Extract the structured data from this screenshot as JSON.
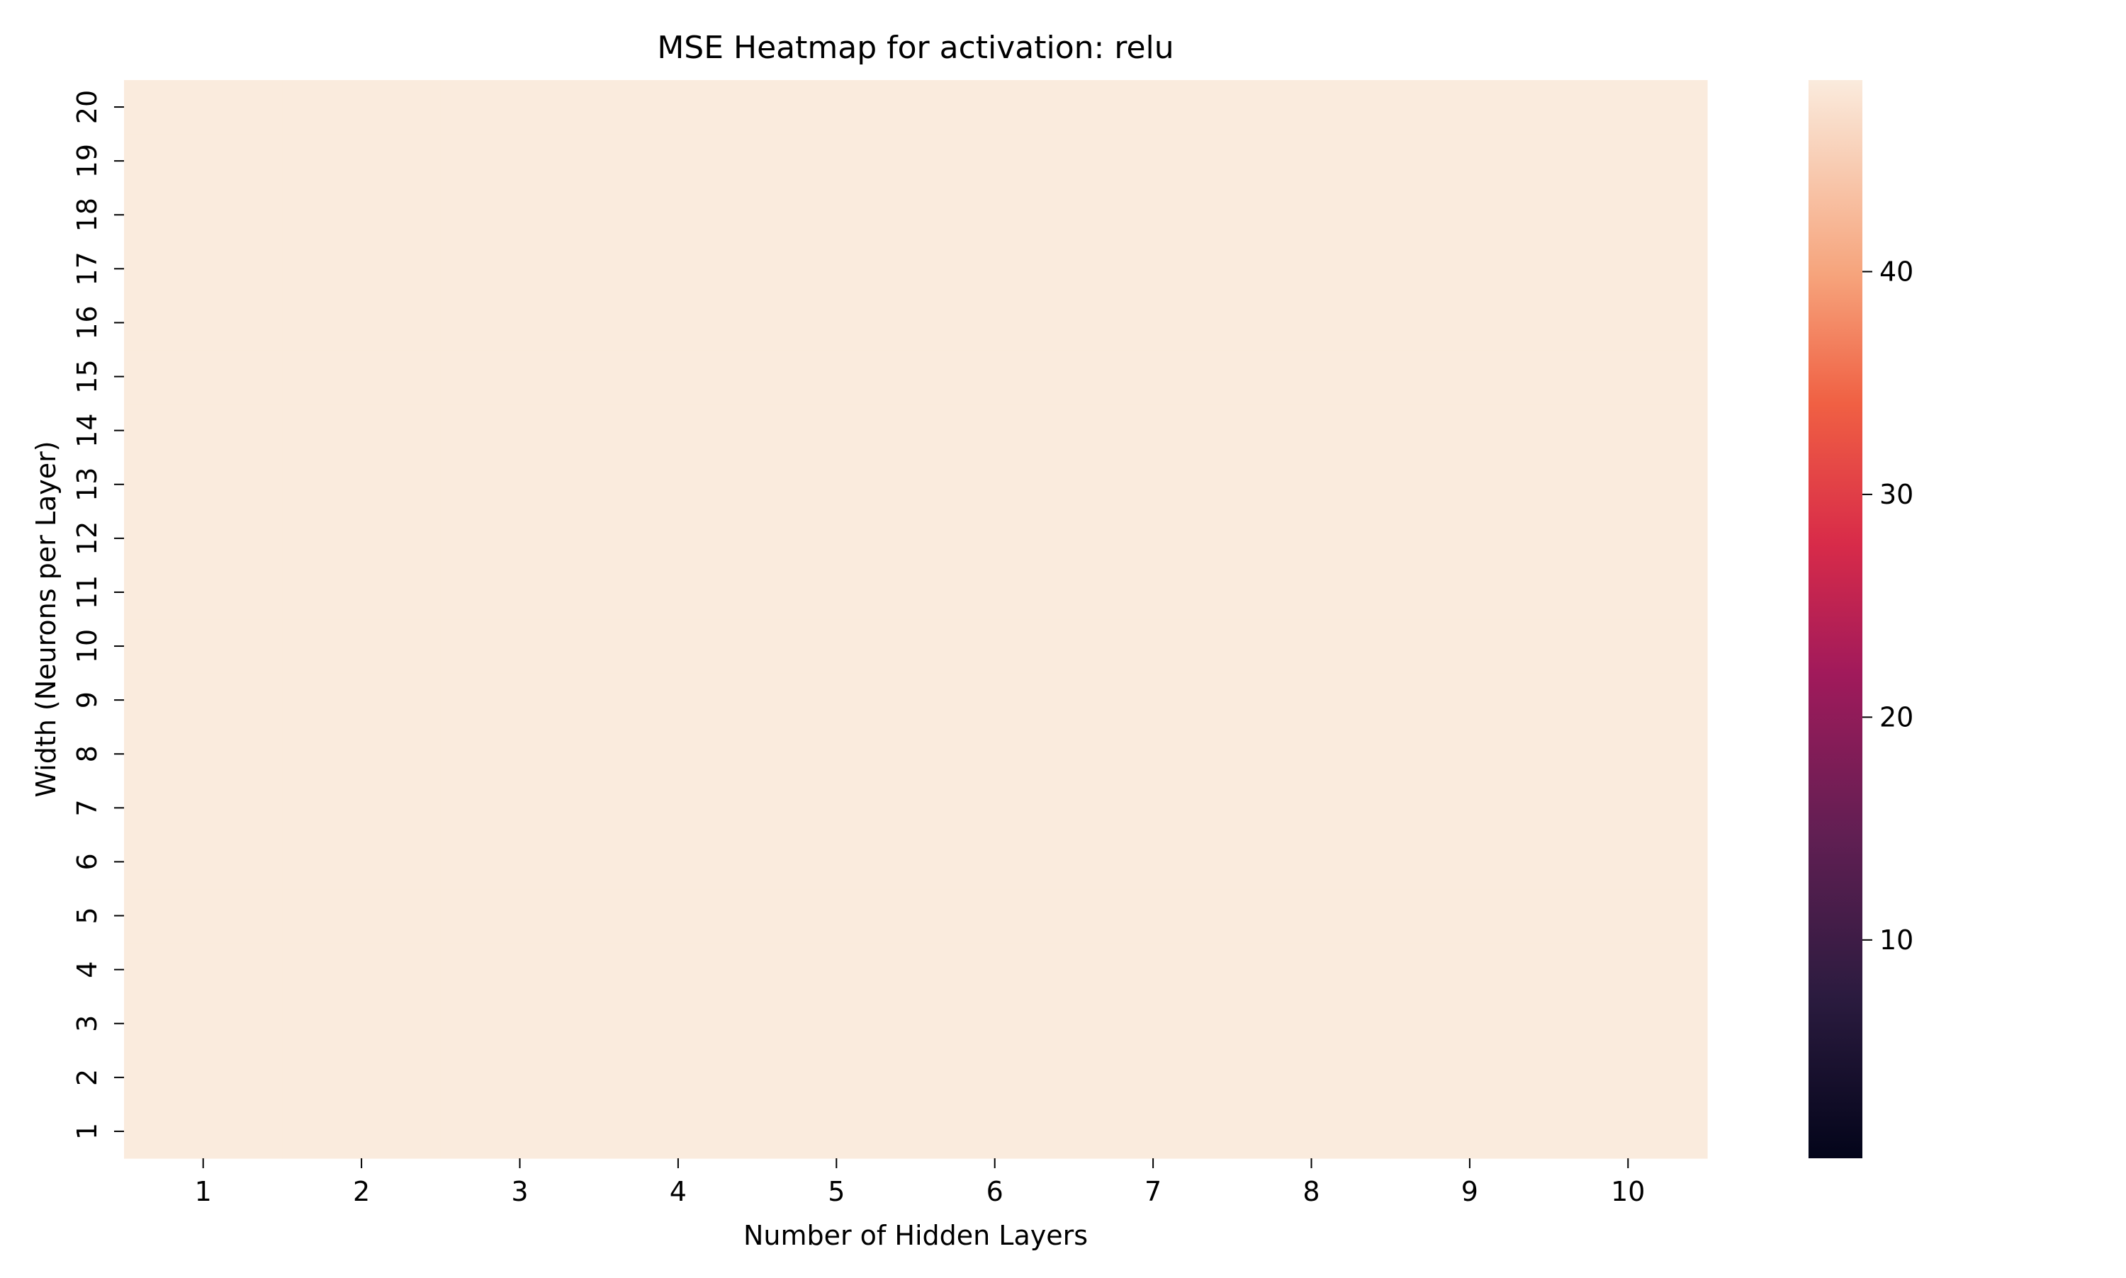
{
  "chart_data": {
    "type": "heatmap",
    "title": "MSE Heatmap for activation: relu",
    "xlabel": "Number of Hidden Layers",
    "ylabel": "Width (Neurons per Layer)",
    "x_categories": [
      "1",
      "2",
      "3",
      "4",
      "5",
      "6",
      "7",
      "8",
      "9",
      "10"
    ],
    "y_categories": [
      "1",
      "2",
      "3",
      "4",
      "5",
      "6",
      "7",
      "8",
      "9",
      "10",
      "11",
      "12",
      "13",
      "14",
      "15",
      "16",
      "17",
      "18",
      "19",
      "20"
    ],
    "value_range": [
      0.2,
      48.6
    ],
    "uniform_value": 48.6,
    "colormap": "rocket",
    "cell_color": "#faebdd",
    "colorbar": {
      "ticks": [
        "10",
        "20",
        "30",
        "40"
      ],
      "tick_values": [
        10,
        20,
        30,
        40
      ],
      "min": 0.2,
      "max": 48.6
    }
  }
}
